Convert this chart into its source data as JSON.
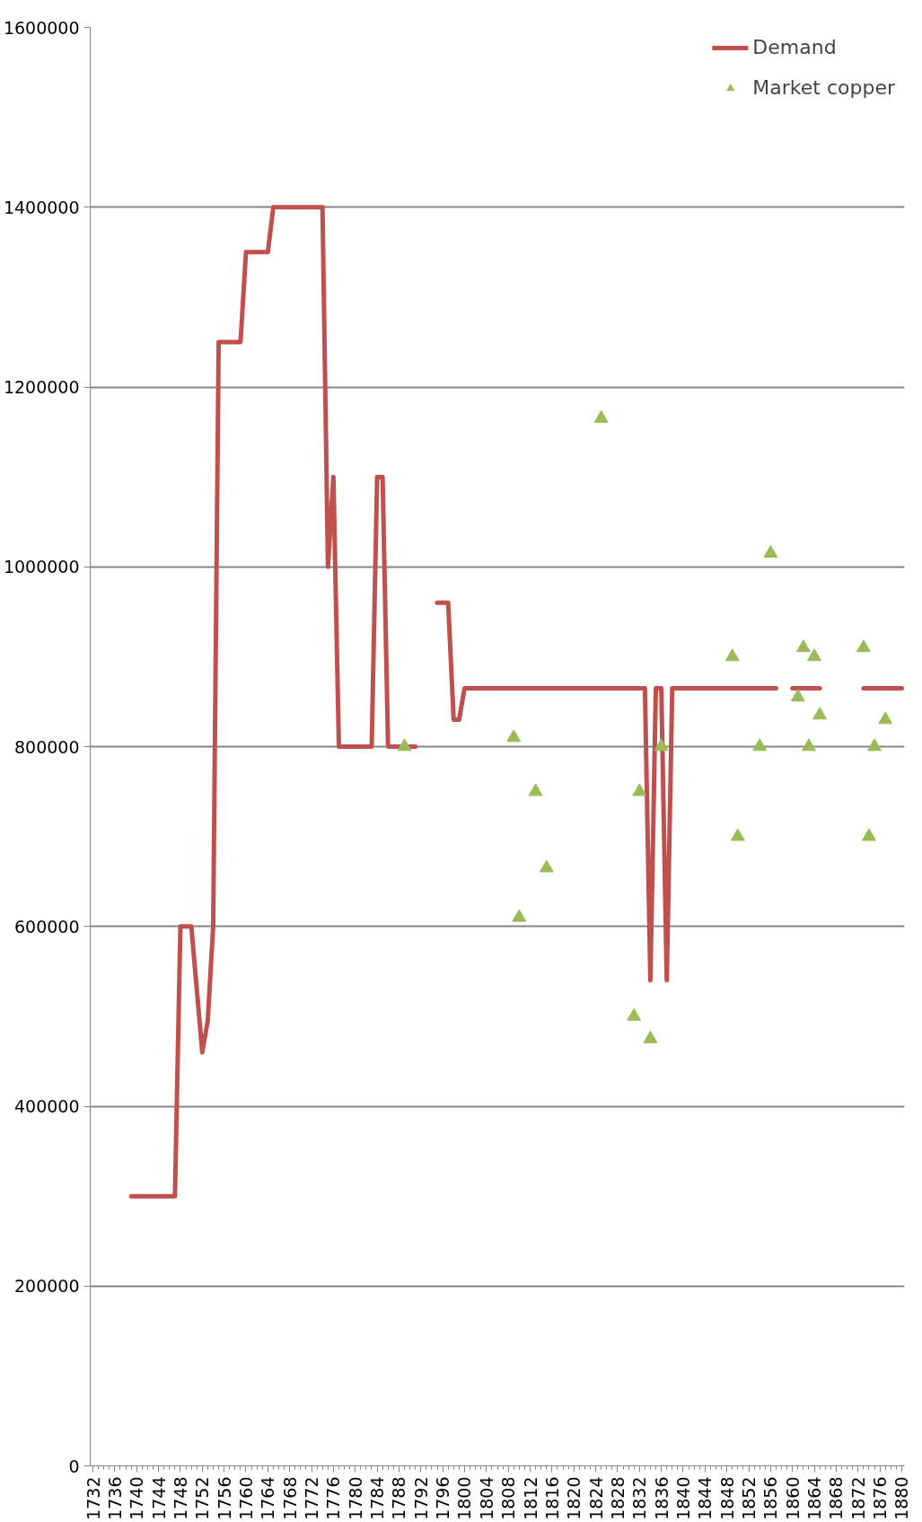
{
  "chart_data": {
    "type": "line",
    "xlim": [
      1731.5,
      1880.5
    ],
    "xticks": [
      1732,
      {
        "value": 1733,
        "label": null
      },
      {
        "value": 1734,
        "label": null
      },
      {
        "value": 1735,
        "label": null
      },
      1736,
      {
        "value": 1737,
        "label": null
      },
      {
        "value": 1738,
        "label": null
      },
      {
        "value": 1739,
        "label": null
      },
      1740,
      {
        "value": 1741,
        "label": null
      },
      {
        "value": 1742,
        "label": null
      },
      {
        "value": 1743,
        "label": null
      },
      1744,
      {
        "value": 1745,
        "label": null
      },
      {
        "value": 1746,
        "label": null
      },
      {
        "value": 1747,
        "label": null
      },
      1748,
      {
        "value": 1749,
        "label": null
      },
      {
        "value": 1750,
        "label": null
      },
      {
        "value": 1751,
        "label": null
      },
      1752,
      {
        "value": 1753,
        "label": null
      },
      {
        "value": 1754,
        "label": null
      },
      {
        "value": 1755,
        "label": null
      },
      1756,
      {
        "value": 1757,
        "label": null
      },
      {
        "value": 1758,
        "label": null
      },
      {
        "value": 1759,
        "label": null
      },
      1760,
      {
        "value": 1761,
        "label": null
      },
      {
        "value": 1762,
        "label": null
      },
      {
        "value": 1763,
        "label": null
      },
      1764,
      {
        "value": 1765,
        "label": null
      },
      {
        "value": 1766,
        "label": null
      },
      {
        "value": 1767,
        "label": null
      },
      1768,
      {
        "value": 1769,
        "label": null
      },
      {
        "value": 1770,
        "label": null
      },
      {
        "value": 1771,
        "label": null
      },
      1772,
      {
        "value": 1773,
        "label": null
      },
      {
        "value": 1774,
        "label": null
      },
      {
        "value": 1775,
        "label": null
      },
      1776,
      {
        "value": 1777,
        "label": null
      },
      {
        "value": 1778,
        "label": null
      },
      {
        "value": 1779,
        "label": null
      },
      1780,
      {
        "value": 1781,
        "label": null
      },
      {
        "value": 1782,
        "label": null
      },
      {
        "value": 1783,
        "label": null
      },
      1784,
      {
        "value": 1785,
        "label": null
      },
      {
        "value": 1786,
        "label": null
      },
      {
        "value": 1787,
        "label": null
      },
      1788,
      {
        "value": 1789,
        "label": null
      },
      {
        "value": 1790,
        "label": null
      },
      {
        "value": 1791,
        "label": null
      },
      1792,
      {
        "value": 1793,
        "label": null
      },
      {
        "value": 1794,
        "label": null
      },
      {
        "value": 1795,
        "label": null
      },
      1796,
      {
        "value": 1797,
        "label": null
      },
      {
        "value": 1798,
        "label": null
      },
      {
        "value": 1799,
        "label": null
      },
      1800,
      {
        "value": 1801,
        "label": null
      },
      {
        "value": 1802,
        "label": null
      },
      {
        "value": 1803,
        "label": null
      },
      1804,
      {
        "value": 1805,
        "label": null
      },
      {
        "value": 1806,
        "label": null
      },
      {
        "value": 1807,
        "label": null
      },
      1808,
      {
        "value": 1809,
        "label": null
      },
      {
        "value": 1810,
        "label": null
      },
      {
        "value": 1811,
        "label": null
      },
      1812,
      {
        "value": 1813,
        "label": null
      },
      {
        "value": 1814,
        "label": null
      },
      {
        "value": 1815,
        "label": null
      },
      1816,
      {
        "value": 1817,
        "label": null
      },
      {
        "value": 1818,
        "label": null
      },
      {
        "value": 1819,
        "label": null
      },
      1820,
      {
        "value": 1821,
        "label": null
      },
      {
        "value": 1822,
        "label": null
      },
      {
        "value": 1823,
        "label": null
      },
      1824,
      {
        "value": 1825,
        "label": null
      },
      {
        "value": 1826,
        "label": null
      },
      {
        "value": 1827,
        "label": null
      },
      1828,
      {
        "value": 1829,
        "label": null
      },
      {
        "value": 1830,
        "label": null
      },
      {
        "value": 1831,
        "label": null
      },
      1832,
      {
        "value": 1833,
        "label": null
      },
      {
        "value": 1834,
        "label": null
      },
      {
        "value": 1835,
        "label": null
      },
      1836,
      {
        "value": 1837,
        "label": null
      },
      {
        "value": 1838,
        "label": null
      },
      {
        "value": 1839,
        "label": null
      },
      1840,
      {
        "value": 1841,
        "label": null
      },
      {
        "value": 1842,
        "label": null
      },
      {
        "value": 1843,
        "label": null
      },
      1844,
      {
        "value": 1845,
        "label": null
      },
      {
        "value": 1846,
        "label": null
      },
      {
        "value": 1847,
        "label": null
      },
      1848,
      {
        "value": 1849,
        "label": null
      },
      {
        "value": 1850,
        "label": null
      },
      {
        "value": 1851,
        "label": null
      },
      1852,
      {
        "value": 1853,
        "label": null
      },
      {
        "value": 1854,
        "label": null
      },
      {
        "value": 1855,
        "label": null
      },
      1856,
      {
        "value": 1857,
        "label": null
      },
      {
        "value": 1858,
        "label": null
      },
      {
        "value": 1859,
        "label": null
      },
      1860,
      {
        "value": 1861,
        "label": null
      },
      {
        "value": 1862,
        "label": null
      },
      {
        "value": 1863,
        "label": null
      },
      1864,
      {
        "value": 1865,
        "label": null
      },
      {
        "value": 1866,
        "label": null
      },
      {
        "value": 1867,
        "label": null
      },
      1868,
      {
        "value": 1869,
        "label": null
      },
      {
        "value": 1870,
        "label": null
      },
      {
        "value": 1871,
        "label": null
      },
      1872,
      {
        "value": 1873,
        "label": null
      },
      {
        "value": 1874,
        "label": null
      },
      {
        "value": 1875,
        "label": null
      },
      1876,
      {
        "value": 1877,
        "label": null
      },
      {
        "value": 1878,
        "label": null
      },
      {
        "value": 1879,
        "label": null
      },
      1880
    ],
    "ylim": [
      0,
      1600000
    ],
    "yticks": [
      0,
      200000,
      400000,
      600000,
      800000,
      1000000,
      1200000,
      1400000,
      1600000
    ],
    "grid": "y",
    "legend": "top right",
    "series": [
      {
        "name": "Demand",
        "color": "#c0504d",
        "line_style": "solid",
        "marker": "none",
        "x": [
          1739,
          1747,
          1748,
          1750,
          1752,
          1753,
          1754,
          1755,
          1759,
          1760,
          1764,
          1765,
          1774,
          1775,
          1776,
          1777,
          1783,
          1784,
          1785,
          1786,
          1791,
          1793,
          1795,
          1797,
          1798,
          1799,
          1800,
          1833,
          1834,
          1835,
          1836,
          1837,
          1838,
          1857,
          1858,
          1860,
          1865,
          1869,
          1873,
          1880
        ],
        "values": [
          300000,
          300000,
          600000,
          600000,
          460000,
          495000,
          600000,
          1250000,
          1250000,
          1350000,
          1350000,
          1400000,
          1400000,
          1000000,
          1100000,
          800000,
          800000,
          1100000,
          1100000,
          800000,
          800000,
          null,
          960000,
          960000,
          830000,
          830000,
          865000,
          865000,
          540000,
          865000,
          865000,
          540000,
          865000,
          865000,
          null,
          865000,
          865000,
          null,
          865000,
          865000
        ]
      },
      {
        "name": "Market copper",
        "type": "scatter",
        "color": "#9bbb59",
        "marker": "triangle",
        "x": [
          1789,
          1809,
          1810,
          1813,
          1815,
          1825,
          1831,
          1832,
          1834,
          1836,
          1849,
          1850,
          1854,
          1856,
          1861,
          1862,
          1863,
          1864,
          1865,
          1873,
          1874,
          1875,
          1877
        ],
        "values": [
          800000,
          810000,
          610000,
          750000,
          665000,
          1165000,
          500000,
          750000,
          475000,
          800000,
          900000,
          700000,
          800000,
          1015000,
          855000,
          910000,
          800000,
          900000,
          835000,
          910000,
          700000,
          800000,
          830000
        ]
      }
    ]
  }
}
